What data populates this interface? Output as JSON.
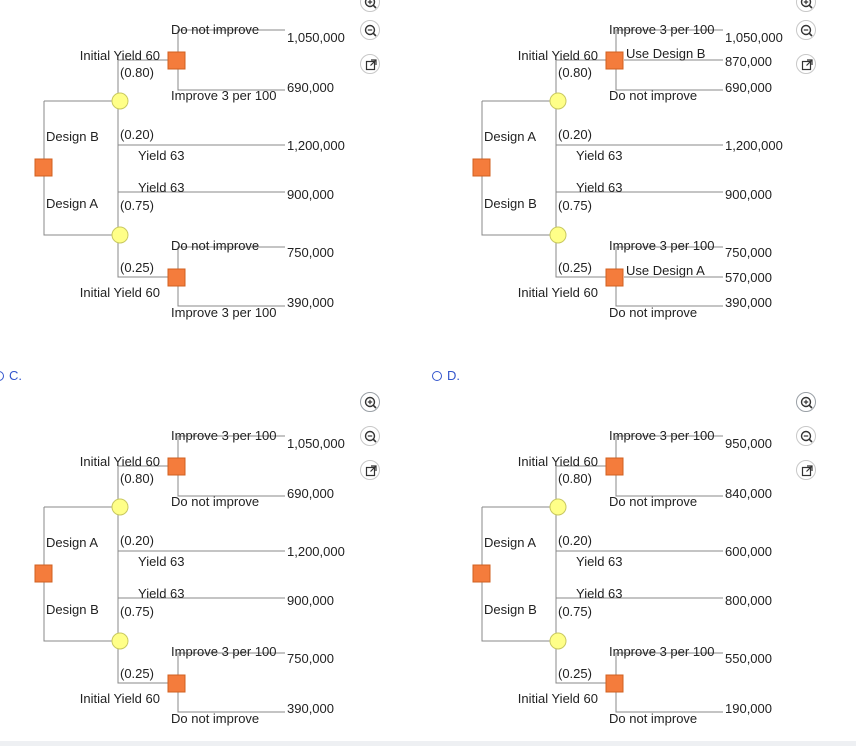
{
  "options": [
    {
      "letter": "C."
    },
    {
      "letter": "D."
    }
  ],
  "colors": {
    "decision": "#f47c3c",
    "chance": "#ffff88",
    "line": "#888888",
    "link": "#3355cc"
  },
  "icons": [
    "zoom-out-icon",
    "zoom-in-icon",
    "external-link-icon"
  ],
  "trees": [
    {
      "first_branch": "Design B",
      "second_branch": "Design A",
      "top_label": "Initial Yield 60",
      "top_prob": "(0.80)",
      "mid_prob": "(0.20)",
      "mid_label": "Yield 63",
      "lower_label": "Yield 63",
      "lower_prob": "(0.75)",
      "bot_prob": "(0.25)",
      "bot_label": "Initial Yield 60",
      "top_opt1": "Do not improve",
      "top_opt_mid": "",
      "top_opt2": "Improve 3 per 100",
      "bot_opt1": "Do not improve",
      "bot_opt_mid": "",
      "bot_opt2": "Improve 3 per 100",
      "pay": [
        "1,050,000",
        "",
        "690,000",
        "1,200,000",
        "900,000",
        "750,000",
        "",
        "390,000"
      ]
    },
    {
      "first_branch": "Design A",
      "second_branch": "Design B",
      "top_label": "Initial Yield 60",
      "top_prob": "(0.80)",
      "mid_prob": "(0.20)",
      "mid_label": "Yield 63",
      "lower_label": "Yield 63",
      "lower_prob": "(0.75)",
      "bot_prob": "(0.25)",
      "bot_label": "Initial Yield 60",
      "top_opt1": "Improve 3 per 100",
      "top_opt_mid": "Use Design B",
      "top_opt2": "Do not improve",
      "bot_opt1": "Improve 3 per 100",
      "bot_opt_mid": "Use Design A",
      "bot_opt2": "Do not improve",
      "pay": [
        "1,050,000",
        "870,000",
        "690,000",
        "1,200,000",
        "900,000",
        "750,000",
        "570,000",
        "390,000"
      ]
    },
    {
      "first_branch": "Design A",
      "second_branch": "Design B",
      "top_label": "Initial Yield 60",
      "top_prob": "(0.80)",
      "mid_prob": "(0.20)",
      "mid_label": "Yield 63",
      "lower_label": "Yield 63",
      "lower_prob": "(0.75)",
      "bot_prob": "(0.25)",
      "bot_label": "Initial Yield 60",
      "top_opt1": "Improve 3 per 100",
      "top_opt_mid": "",
      "top_opt2": "Do not improve",
      "bot_opt1": "Improve 3 per 100",
      "bot_opt_mid": "",
      "bot_opt2": "Do not improve",
      "pay": [
        "1,050,000",
        "",
        "690,000",
        "1,200,000",
        "900,000",
        "750,000",
        "",
        "390,000"
      ]
    },
    {
      "first_branch": "Design A",
      "second_branch": "Design B",
      "top_label": "Initial Yield 60",
      "top_prob": "(0.80)",
      "mid_prob": "(0.20)",
      "mid_label": "Yield 63",
      "lower_label": "Yield 63",
      "lower_prob": "(0.75)",
      "bot_prob": "(0.25)",
      "bot_label": "Initial Yield 60",
      "top_opt1": "Improve 3 per 100",
      "top_opt_mid": "",
      "top_opt2": "Do not improve",
      "bot_opt1": "Improve 3 per 100",
      "bot_opt_mid": "",
      "bot_opt2": "Do not improve",
      "pay": [
        "950,000",
        "",
        "840,000",
        "600,000",
        "800,000",
        "550,000",
        "",
        "190,000"
      ]
    }
  ]
}
